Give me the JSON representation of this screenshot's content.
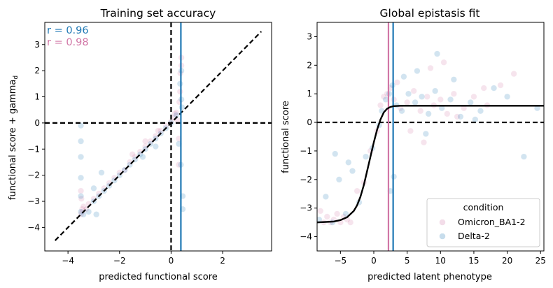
{
  "colors": {
    "Omicron_BA1-2": "#d176a6",
    "Delta-2": "#1f78b4",
    "fit_line": "#000000",
    "reference_line": "#000000"
  },
  "chart_data": [
    {
      "type": "scatter",
      "title": "Training set accuracy",
      "xlabel": "predicted functional score",
      "ylabel": "functional score + gamma_d",
      "ylabel_base": "functional score + gamma",
      "ylabel_subscript": "d",
      "xlim": [
        -4.9,
        3.9
      ],
      "ylim": [
        -4.9,
        3.85
      ],
      "xticks": [
        -4,
        -2,
        0,
        2
      ],
      "yticks": [
        -4,
        -3,
        -2,
        -1,
        0,
        1,
        2,
        3
      ],
      "grid": false,
      "annotations": [
        {
          "text": "r = 0.96",
          "series": "Delta-2"
        },
        {
          "text": "r = 0.98",
          "series": "Omicron_BA1-2"
        }
      ],
      "reference_lines": [
        {
          "kind": "diagonal",
          "from": [
            -4.5,
            -4.5
          ],
          "to": [
            3.5,
            3.5
          ],
          "style": "dashed"
        },
        {
          "kind": "horizontal",
          "y": 0,
          "style": "dashed"
        },
        {
          "kind": "vertical",
          "x": 0,
          "style": "dashed"
        },
        {
          "kind": "vertical",
          "x": 0.38,
          "series": "Delta-2",
          "style": "solid"
        }
      ],
      "series": [
        {
          "name": "Omicron_BA1-2",
          "x": [
            -3.5,
            -3.45,
            -3.4,
            -3.3,
            -3.2,
            -3.0,
            -2.8,
            -2.6,
            -2.4,
            -2.2,
            -2.0,
            -1.8,
            -1.6,
            -1.4,
            -1.2,
            -1.0,
            -0.8,
            -0.6,
            -0.4,
            -0.2,
            0.0,
            0.1,
            0.15,
            0.2,
            0.25,
            0.3,
            0.35,
            0.4,
            -3.5,
            -3.48,
            -3.45,
            -1.5,
            -1.0,
            -0.5,
            0.3,
            0.32,
            0.36,
            0.4
          ],
          "y": [
            -3.5,
            -3.3,
            -3.2,
            -3.3,
            -3.1,
            -2.9,
            -2.7,
            -2.5,
            -2.3,
            -2.1,
            -1.9,
            -1.8,
            -1.5,
            -1.3,
            -1.1,
            -0.9,
            -0.7,
            -0.5,
            -0.3,
            -0.1,
            0.05,
            0.2,
            0.35,
            0.4,
            0.1,
            -0.6,
            1.2,
            2.2,
            -2.6,
            -2.9,
            -3.4,
            -1.2,
            -0.7,
            -0.3,
            -1.6,
            0.8,
            1.9,
            2.5
          ]
        },
        {
          "name": "Delta-2",
          "x": [
            -3.5,
            -3.5,
            -3.5,
            -3.5,
            -3.5,
            -3.5,
            -3.4,
            -3.2,
            -3.0,
            -2.8,
            -2.6,
            -2.4,
            -2.2,
            -2.0,
            -1.8,
            -1.6,
            -1.4,
            -1.2,
            -1.0,
            -0.8,
            -0.6,
            -0.4,
            -0.2,
            0.0,
            0.2,
            0.3,
            0.35,
            0.4,
            0.42,
            0.45,
            0.38,
            0.4,
            -2.9,
            -3.0,
            -2.7,
            -1.1,
            -0.6,
            0.45
          ],
          "y": [
            -0.1,
            -0.7,
            -1.3,
            -2.1,
            -2.8,
            -3.4,
            -3.5,
            -3.4,
            -3.0,
            -2.8,
            -2.6,
            -2.4,
            -2.2,
            -2.0,
            -1.8,
            -1.6,
            -1.4,
            -1.2,
            -1.0,
            -0.8,
            -0.6,
            -0.4,
            -0.2,
            0.0,
            0.3,
            -0.8,
            1.5,
            2.0,
            0.6,
            -2.8,
            -1.6,
            0.9,
            -3.5,
            -2.5,
            -1.9,
            -1.3,
            -0.9,
            -3.3
          ]
        }
      ]
    },
    {
      "type": "scatter",
      "title": "Global epistasis fit",
      "xlabel": "predicted latent phenotype",
      "ylabel": "functional score",
      "xlim": [
        -8.5,
        25.5
      ],
      "ylim": [
        -4.5,
        3.5
      ],
      "xticks": [
        -5,
        0,
        5,
        10,
        15,
        20,
        25
      ],
      "yticks": [
        -4,
        -3,
        -2,
        -1,
        0,
        1,
        2,
        3
      ],
      "grid": false,
      "legend": {
        "title": "condition",
        "placement": "lower-right",
        "entries": [
          "Omicron_BA1-2",
          "Delta-2"
        ]
      },
      "reference_lines": [
        {
          "kind": "horizontal",
          "y": 0,
          "style": "dashed"
        },
        {
          "kind": "vertical",
          "x": 2.2,
          "series": "Omicron_BA1-2",
          "style": "solid"
        },
        {
          "kind": "vertical",
          "x": 2.9,
          "series": "Delta-2",
          "style": "solid"
        }
      ],
      "fit_curve": {
        "x": [
          -8.5,
          -6,
          -5,
          -4,
          -3,
          -2.5,
          -2,
          -1.5,
          -1,
          -0.5,
          0,
          0.5,
          1,
          1.5,
          2,
          2.5,
          3,
          4,
          6,
          10,
          25.5
        ],
        "y": [
          -3.5,
          -3.47,
          -3.42,
          -3.32,
          -3.1,
          -2.9,
          -2.6,
          -2.2,
          -1.7,
          -1.2,
          -0.7,
          -0.25,
          0.1,
          0.35,
          0.48,
          0.54,
          0.57,
          0.58,
          0.58,
          0.58,
          0.58
        ]
      },
      "series": [
        {
          "name": "Omicron_BA1-2",
          "x": [
            -8.0,
            -7.5,
            -7.0,
            -6.5,
            -6.0,
            -5.5,
            -5.0,
            -4.5,
            -4.0,
            -3.5,
            -2.5,
            -1.5,
            -0.5,
            0.5,
            1.0,
            1.5,
            2.0,
            2.5,
            3.0,
            4.0,
            5.0,
            6.0,
            7.0,
            8.0,
            9.0,
            10.0,
            11.0,
            12.0,
            13.5,
            15.0,
            17.0,
            19.0,
            21.0,
            3.5,
            5.5,
            8.5,
            12.5,
            16.5,
            7.5,
            10.5
          ],
          "y": [
            -3.1,
            -3.5,
            -3.3,
            -3.5,
            -3.4,
            -3.2,
            -3.5,
            -3.3,
            -3.4,
            -3.5,
            -2.4,
            -2.1,
            -1.0,
            -0.3,
            0.6,
            0.9,
            1.0,
            1.2,
            0.8,
            0.5,
            0.7,
            1.1,
            0.4,
            0.9,
            0.6,
            0.8,
            0.3,
            1.0,
            0.5,
            0.9,
            0.6,
            1.3,
            1.7,
            1.4,
            -0.3,
            1.9,
            0.2,
            1.2,
            -0.7,
            2.1
          ]
        },
        {
          "name": "Delta-2",
          "x": [
            -8.2,
            -7.2,
            -6.2,
            -5.2,
            -4.2,
            -3.2,
            -2.2,
            -1.2,
            -0.2,
            0.8,
            1.2,
            1.8,
            2.3,
            2.8,
            3.4,
            4.2,
            5.2,
            6.2,
            7.2,
            8.2,
            9.2,
            10.2,
            11.5,
            13.0,
            14.5,
            16.0,
            18.0,
            20.0,
            22.5,
            24.5,
            4.5,
            6.5,
            9.5,
            3.0,
            2.5,
            7.8,
            12.0,
            -5.8,
            -3.8,
            15.2
          ],
          "y": [
            -3.4,
            -2.6,
            -3.5,
            -2.0,
            -3.2,
            -1.7,
            -2.8,
            -1.2,
            -0.9,
            -0.1,
            0.4,
            0.8,
            1.0,
            1.3,
            0.6,
            0.4,
            1.0,
            0.7,
            0.9,
            0.3,
            1.1,
            0.5,
            0.8,
            0.2,
            0.7,
            0.4,
            1.2,
            0.9,
            -1.2,
            0.5,
            1.6,
            1.8,
            2.4,
            -1.9,
            -2.4,
            -0.4,
            1.5,
            -1.1,
            -1.4,
            0.1
          ]
        }
      ]
    }
  ]
}
